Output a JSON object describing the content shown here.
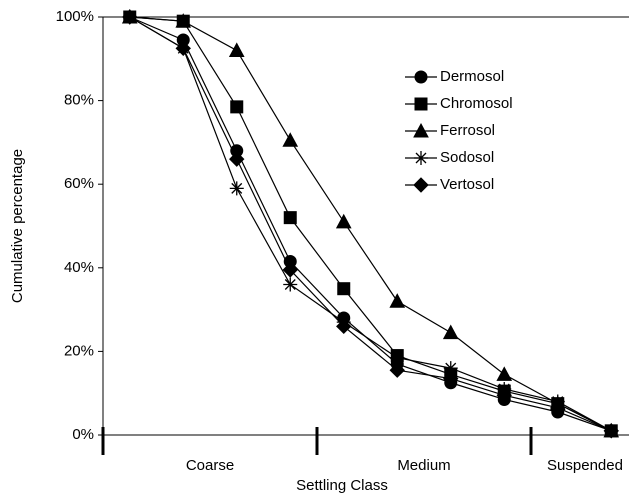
{
  "chart_data": {
    "type": "line",
    "y_label": "Cumulative percentage",
    "x_label": "Settling Class",
    "categories": [
      null,
      null,
      null,
      null,
      null,
      null,
      null,
      null,
      null,
      null
    ],
    "category_groups": [
      "Coarse",
      "Medium",
      "Suspended"
    ],
    "ylim": [
      0,
      100
    ],
    "yticks": [
      {
        "value": 0,
        "label": "0%"
      },
      {
        "value": 20,
        "label": "20%"
      },
      {
        "value": 40,
        "label": "40%"
      },
      {
        "value": 60,
        "label": "60%"
      },
      {
        "value": 80,
        "label": "80%"
      },
      {
        "value": 100,
        "label": "100%"
      }
    ],
    "legend": "upper right",
    "series": [
      {
        "name": "Dermosol",
        "color": "#000000",
        "marker": "circle",
        "values": [
          100,
          94.5,
          68,
          41.5,
          28,
          17,
          12.5,
          8.5,
          5.5,
          1
        ]
      },
      {
        "name": "Chromosol",
        "color": "#000000",
        "marker": "square",
        "values": [
          100,
          99,
          78.5,
          52,
          35,
          19,
          14.5,
          10.5,
          7.5,
          1
        ]
      },
      {
        "name": "Ferrosol",
        "color": "#000000",
        "marker": "triangle",
        "values": [
          100,
          99,
          92,
          70.5,
          51,
          32,
          24.5,
          14.5,
          7.5,
          1
        ]
      },
      {
        "name": "Sodosol",
        "color": "#000000",
        "marker": "star",
        "values": [
          100,
          92.5,
          59,
          36,
          27,
          18.5,
          16,
          11,
          8,
          1
        ]
      },
      {
        "name": "Vertosol",
        "color": "#000000",
        "marker": "diamond",
        "values": [
          100,
          92.5,
          66,
          39.5,
          26,
          15.5,
          13.5,
          9.5,
          6.5,
          1
        ]
      }
    ]
  }
}
